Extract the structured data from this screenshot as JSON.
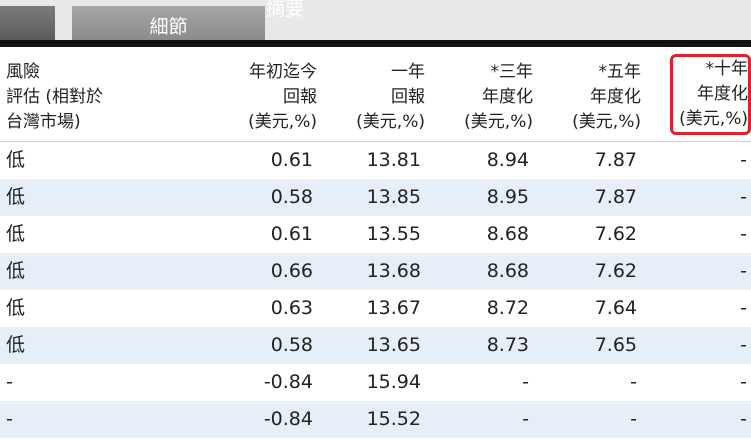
{
  "tabs": {
    "details_label": "細節",
    "summary_label": "摘要"
  },
  "table": {
    "headers": [
      [
        "風險",
        "評估 (相對於",
        "台灣市場)"
      ],
      [
        "年初迄今",
        "回報",
        "(美元,%)"
      ],
      [
        "一年",
        "回報",
        "(美元,%)"
      ],
      [
        "*三年",
        "年度化",
        "(美元,%)"
      ],
      [
        "*五年",
        "年度化",
        "(美元,%)"
      ],
      [
        "*十年",
        "年度化",
        "(美元,%)"
      ]
    ],
    "rows": [
      [
        "低",
        "0.61",
        "13.81",
        "8.94",
        "7.87",
        "-"
      ],
      [
        "低",
        "0.58",
        "13.85",
        "8.95",
        "7.87",
        "-"
      ],
      [
        "低",
        "0.61",
        "13.55",
        "8.68",
        "7.62",
        "-"
      ],
      [
        "低",
        "0.66",
        "13.68",
        "8.68",
        "7.62",
        "-"
      ],
      [
        "低",
        "0.63",
        "13.67",
        "8.72",
        "7.64",
        "-"
      ],
      [
        "低",
        "0.58",
        "13.65",
        "8.73",
        "7.65",
        "-"
      ],
      [
        "-",
        "-0.84",
        "15.94",
        "-",
        "-",
        "-"
      ],
      [
        "-",
        "-0.84",
        "15.52",
        "-",
        "-",
        "-"
      ]
    ]
  },
  "colors": {
    "highlight_border": "#e0202a",
    "row_stripe": "#e6eef7",
    "header_rule": "#111111"
  }
}
